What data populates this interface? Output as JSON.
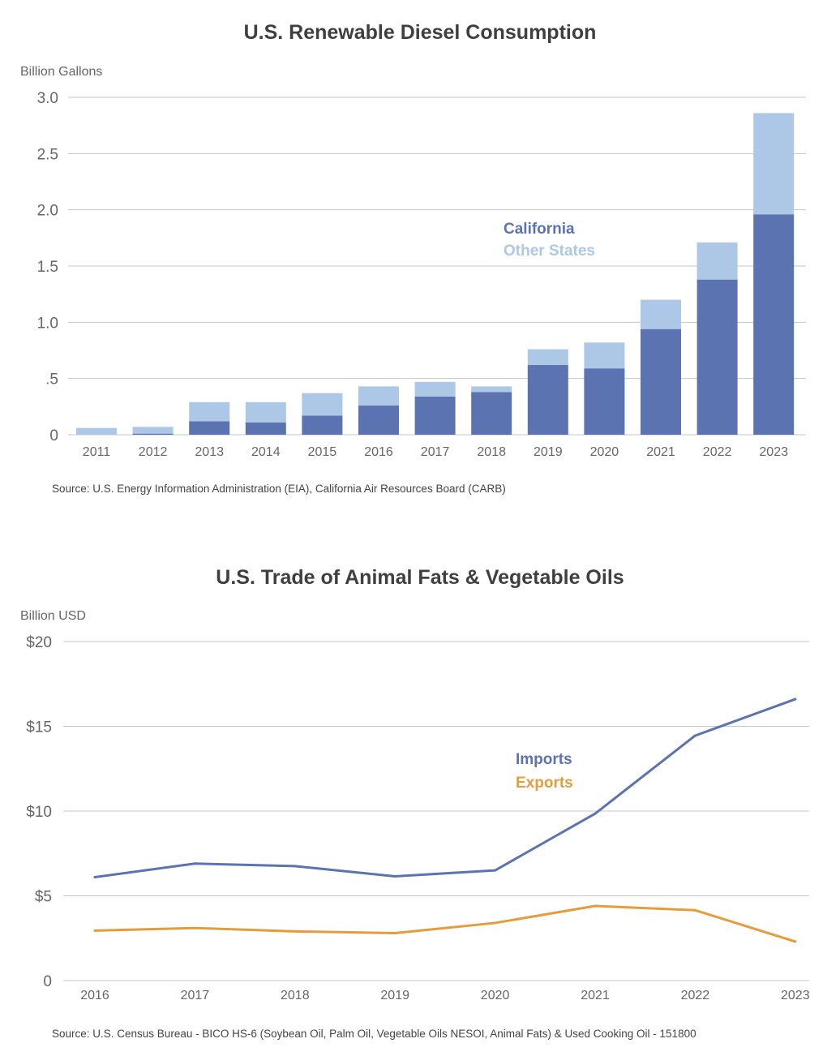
{
  "chart_data": [
    {
      "type": "bar",
      "stacked": true,
      "title": "U.S. Renewable Diesel Consumption",
      "ylabel": "Billion Gallons",
      "xlabel": "",
      "ylim": [
        0,
        3.0
      ],
      "yticks": [
        0,
        0.5,
        1.0,
        1.5,
        2.0,
        2.5,
        3.0
      ],
      "ytick_labels": [
        "0",
        ".5",
        "1.0",
        "1.5",
        "2.0",
        "2.5",
        "3.0"
      ],
      "categories": [
        "2011",
        "2012",
        "2013",
        "2014",
        "2015",
        "2016",
        "2017",
        "2018",
        "2019",
        "2020",
        "2021",
        "2022",
        "2023"
      ],
      "series": [
        {
          "name": "California",
          "color": "#5b74b1",
          "values": [
            0.0,
            0.01,
            0.12,
            0.11,
            0.17,
            0.26,
            0.34,
            0.38,
            0.62,
            0.59,
            0.94,
            1.38,
            1.96
          ]
        },
        {
          "name": "Other States",
          "color": "#adc8e6",
          "values": [
            0.06,
            0.06,
            0.17,
            0.18,
            0.2,
            0.17,
            0.13,
            0.05,
            0.14,
            0.23,
            0.26,
            0.33,
            0.9
          ]
        }
      ],
      "legend": [
        {
          "label": "California",
          "color": "#5b74b1"
        },
        {
          "label": "Other States",
          "color": "#adc8e6"
        }
      ],
      "source": "Source: U.S. Energy Information Administration (EIA), California Air Resources Board (CARB)"
    },
    {
      "type": "line",
      "title": "U.S. Trade of Animal Fats & Vegetable Oils",
      "ylabel": "Billion USD",
      "xlabel": "",
      "ylim": [
        0,
        20
      ],
      "yticks": [
        0,
        5,
        10,
        15,
        20
      ],
      "ytick_labels": [
        "0",
        "$5",
        "$10",
        "$15",
        "$20"
      ],
      "categories": [
        "2016",
        "2017",
        "2018",
        "2019",
        "2020",
        "2021",
        "2022",
        "2023"
      ],
      "series": [
        {
          "name": "Imports",
          "color": "#5b74b1",
          "values": [
            6.1,
            6.9,
            6.75,
            6.15,
            6.5,
            9.85,
            14.45,
            16.6
          ]
        },
        {
          "name": "Exports",
          "color": "#e59c3b",
          "values": [
            2.95,
            3.1,
            2.9,
            2.8,
            3.4,
            4.4,
            4.15,
            2.3
          ]
        }
      ],
      "legend": [
        {
          "label": "Imports",
          "color": "#5b74b1"
        },
        {
          "label": "Exports",
          "color": "#e59c3b"
        }
      ],
      "source": "Source: U.S. Census Bureau - BICO HS-6 (Soybean Oil, Palm Oil, Vegetable Oils NESOI, Animal Fats) & Used Cooking Oil - 151800"
    }
  ]
}
